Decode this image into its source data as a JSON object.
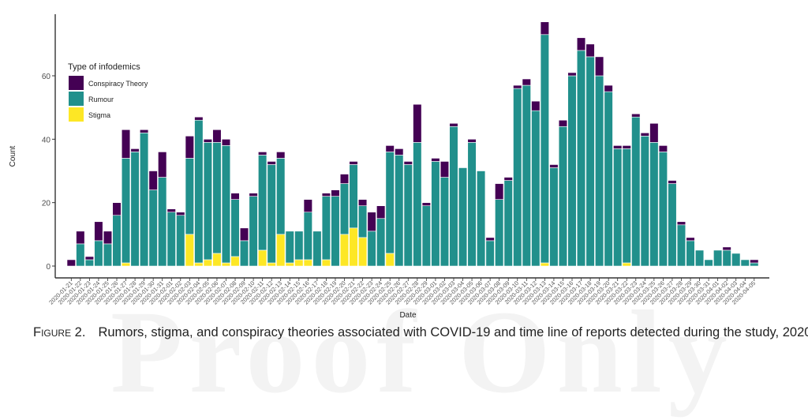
{
  "watermark": "Proof Only",
  "caption": {
    "figure_label": "Figure 2.",
    "text": "Rumors, stigma, and conspiracy theories associated with COVID-19 and time line of reports detected during the study, 2020."
  },
  "chart_data": {
    "type": "bar",
    "stacked": true,
    "title": "",
    "xlabel": "Date",
    "ylabel": "Count",
    "ylim": [
      0,
      78
    ],
    "yticks": [
      0,
      20,
      40,
      60
    ],
    "grid": false,
    "legend": {
      "title": "Type of infodemics",
      "placement": "top-left",
      "entries": [
        {
          "name": "Conspiracy Theory",
          "color": "#440154"
        },
        {
          "name": "Rumour",
          "color": "#21908C"
        },
        {
          "name": "Stigma",
          "color": "#FDE725"
        }
      ]
    },
    "categories": [
      "2020-01-21",
      "2020-01-22",
      "2020-01-23",
      "2020-01-24",
      "2020-01-25",
      "2020-01-26",
      "2020-01-27",
      "2020-01-28",
      "2020-01-29",
      "2020-01-30",
      "2020-01-31",
      "2020-02-01",
      "2020-02-02",
      "2020-02-03",
      "2020-02-04",
      "2020-02-05",
      "2020-02-06",
      "2020-02-07",
      "2020-02-08",
      "2020-02-09",
      "2020-02-10",
      "2020-02-11",
      "2020-02-12",
      "2020-02-13",
      "2020-02-14",
      "2020-02-15",
      "2020-02-16",
      "2020-02-17",
      "2020-02-18",
      "2020-02-19",
      "2020-02-20",
      "2020-02-21",
      "2020-02-22",
      "2020-02-23",
      "2020-02-24",
      "2020-02-25",
      "2020-02-26",
      "2020-02-27",
      "2020-02-28",
      "2020-02-29",
      "2020-03-01",
      "2020-03-02",
      "2020-03-03",
      "2020-03-04",
      "2020-03-05",
      "2020-03-06",
      "2020-03-07",
      "2020-03-08",
      "2020-03-09",
      "2020-03-10",
      "2020-03-11",
      "2020-03-12",
      "2020-03-13",
      "2020-03-14",
      "2020-03-15",
      "2020-03-16",
      "2020-03-17",
      "2020-03-18",
      "2020-03-19",
      "2020-03-20",
      "2020-03-21",
      "2020-03-22",
      "2020-03-23",
      "2020-03-24",
      "2020-03-25",
      "2020-03-26",
      "2020-03-27",
      "2020-03-28",
      "2020-03-29",
      "2020-03-30",
      "2020-03-31",
      "2020-04-01",
      "2020-04-02",
      "2020-04-03",
      "2020-04-04",
      "2020-04-05"
    ],
    "series": [
      {
        "name": "Stigma",
        "color": "#FDE725",
        "values": [
          0,
          0,
          0,
          0,
          0,
          0,
          1,
          0,
          0,
          0,
          0,
          0,
          0,
          10,
          1,
          2,
          4,
          1,
          3,
          0,
          0,
          5,
          1,
          10,
          1,
          2,
          2,
          0,
          2,
          0,
          10,
          12,
          9,
          0,
          0,
          4,
          0,
          0,
          0,
          0,
          0,
          0,
          0,
          0,
          0,
          0,
          0,
          0,
          0,
          0,
          0,
          0,
          1,
          0,
          0,
          0,
          0,
          0,
          0,
          0,
          0,
          1,
          0,
          0,
          0,
          0,
          0,
          0,
          0,
          0,
          0,
          0,
          0,
          0,
          0,
          0
        ]
      },
      {
        "name": "Rumour",
        "color": "#21908C",
        "values": [
          0,
          7,
          2,
          8,
          7,
          16,
          33,
          36,
          42,
          24,
          28,
          17,
          16,
          24,
          45,
          37,
          35,
          37,
          18,
          8,
          22,
          30,
          31,
          24,
          10,
          9,
          15,
          11,
          20,
          22,
          16,
          20,
          10,
          11,
          15,
          32,
          35,
          32,
          39,
          19,
          33,
          28,
          44,
          31,
          39,
          30,
          8,
          21,
          27,
          56,
          57,
          49,
          72,
          31,
          44,
          60,
          68,
          66,
          60,
          55,
          37,
          36,
          47,
          41,
          39,
          36,
          26,
          13,
          8,
          5,
          2,
          5,
          5,
          4,
          2,
          1
        ]
      },
      {
        "name": "Conspiracy Theory",
        "color": "#440154",
        "values": [
          2,
          4,
          1,
          6,
          4,
          4,
          9,
          1,
          1,
          6,
          8,
          1,
          1,
          7,
          1,
          1,
          4,
          2,
          2,
          4,
          1,
          1,
          1,
          2,
          0,
          0,
          4,
          0,
          1,
          2,
          3,
          1,
          2,
          6,
          4,
          2,
          2,
          1,
          12,
          1,
          1,
          5,
          1,
          0,
          1,
          0,
          1,
          5,
          1,
          1,
          2,
          3,
          4,
          1,
          2,
          1,
          4,
          4,
          6,
          2,
          1,
          1,
          1,
          1,
          6,
          2,
          1,
          1,
          1,
          0,
          0,
          0,
          1,
          0,
          0,
          1
        ]
      }
    ]
  }
}
